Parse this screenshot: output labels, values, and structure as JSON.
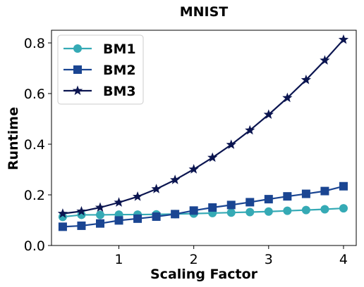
{
  "chart_data": {
    "type": "line",
    "title": "MNIST",
    "xlabel": "Scaling Factor",
    "ylabel": "Runtime",
    "xlim": [
      0.1,
      4.17
    ],
    "ylim": [
      0.0,
      0.85
    ],
    "xticks": [
      1,
      2,
      3,
      4
    ],
    "xtick_labels": [
      "1",
      "2",
      "3",
      "4"
    ],
    "yticks": [
      0.0,
      0.2,
      0.4,
      0.6,
      0.8
    ],
    "ytick_labels": [
      "0.0",
      "0.2",
      "0.4",
      "0.6",
      "0.8"
    ],
    "grid": false,
    "legend": "upper-left",
    "x": [
      0.25,
      0.5,
      0.75,
      1.0,
      1.25,
      1.5,
      1.75,
      2.0,
      2.25,
      2.5,
      2.75,
      3.0,
      3.25,
      3.5,
      3.75,
      4.0
    ],
    "series": [
      {
        "name": "BM1",
        "color": "#35aab5",
        "marker": "circle",
        "values": [
          0.113,
          0.121,
          0.121,
          0.122,
          0.122,
          0.123,
          0.124,
          0.126,
          0.128,
          0.13,
          0.132,
          0.134,
          0.137,
          0.14,
          0.143,
          0.147
        ]
      },
      {
        "name": "BM2",
        "color": "#1a4592",
        "marker": "square",
        "values": [
          0.074,
          0.078,
          0.087,
          0.099,
          0.106,
          0.114,
          0.124,
          0.138,
          0.15,
          0.16,
          0.171,
          0.183,
          0.194,
          0.204,
          0.215,
          0.234
        ]
      },
      {
        "name": "BM3",
        "color": "#0b1550",
        "marker": "star",
        "values": [
          0.126,
          0.135,
          0.15,
          0.17,
          0.193,
          0.223,
          0.259,
          0.301,
          0.347,
          0.398,
          0.455,
          0.517,
          0.583,
          0.654,
          0.731,
          0.813
        ]
      }
    ]
  }
}
